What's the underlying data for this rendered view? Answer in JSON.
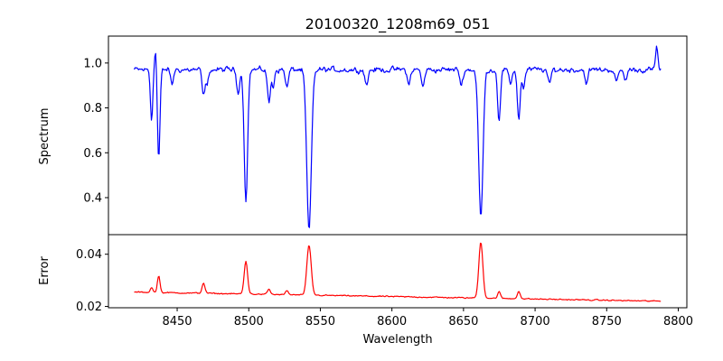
{
  "chart_data": [
    {
      "type": "line",
      "title": "20100320_1208m69_051",
      "xlabel": "",
      "ylabel": "Spectrum",
      "xlim": [
        8402,
        8806
      ],
      "ylim": [
        0.235,
        1.12
      ],
      "yticks": [
        0.4,
        0.6,
        0.8,
        1.0
      ],
      "ytick_labels": [
        "0.4",
        "0.6",
        "0.8",
        "1.0"
      ],
      "grid": false,
      "series": [
        {
          "color": "#0000ff",
          "continuum": 0.97,
          "noise_amplitude": 0.035,
          "x_start": 8420,
          "x_end": 8788,
          "x_step": 0.6,
          "points_sampled": [
            [
              8420,
              0.89
            ],
            [
              8424,
              0.97
            ],
            [
              8428,
              0.93
            ],
            [
              8430,
              0.76
            ],
            [
              8433,
              0.98
            ],
            [
              8435,
              1.08
            ],
            [
              8437,
              0.58
            ],
            [
              8441,
              0.95
            ],
            [
              8450,
              0.97
            ],
            [
              8458,
              0.92
            ],
            [
              8465,
              0.96
            ],
            [
              8470,
              0.85
            ],
            [
              8478,
              0.97
            ],
            [
              8488,
              0.95
            ],
            [
              8493,
              0.86
            ],
            [
              8498,
              0.41
            ],
            [
              8502,
              0.95
            ],
            [
              8510,
              1.0
            ],
            [
              8515,
              0.83
            ],
            [
              8520,
              0.96
            ],
            [
              8530,
              0.99
            ],
            [
              8536,
              0.85
            ],
            [
              8540,
              0.55
            ],
            [
              8542,
              0.27
            ],
            [
              8545,
              0.78
            ],
            [
              8550,
              0.97
            ],
            [
              8560,
              1.0
            ],
            [
              8570,
              0.93
            ],
            [
              8580,
              1.0
            ],
            [
              8590,
              0.98
            ],
            [
              8600,
              0.97
            ],
            [
              8610,
              1.0
            ],
            [
              8620,
              0.96
            ],
            [
              8630,
              0.98
            ],
            [
              8640,
              0.96
            ],
            [
              8650,
              0.93
            ],
            [
              8658,
              0.85
            ],
            [
              8662,
              0.31
            ],
            [
              8665,
              0.82
            ],
            [
              8670,
              0.97
            ],
            [
              8675,
              0.75
            ],
            [
              8680,
              0.95
            ],
            [
              8689,
              0.76
            ],
            [
              8695,
              0.96
            ],
            [
              8705,
              0.97
            ],
            [
              8715,
              0.99
            ],
            [
              8725,
              0.96
            ],
            [
              8735,
              0.98
            ],
            [
              8745,
              0.97
            ],
            [
              8755,
              0.98
            ],
            [
              8765,
              0.97
            ],
            [
              8775,
              0.96
            ],
            [
              8785,
              1.07
            ],
            [
              8788,
              1.01
            ]
          ],
          "lines": [
            {
              "center": 8432.1,
              "depth": 0.22,
              "width": 0.8
            },
            {
              "center": 8435.0,
              "depth": -0.1,
              "width": 0.7
            },
            {
              "center": 8437.1,
              "depth": 0.4,
              "width": 0.9
            },
            {
              "center": 8446.4,
              "depth": 0.07,
              "width": 0.9
            },
            {
              "center": 8468.4,
              "depth": 0.12,
              "width": 1.0
            },
            {
              "center": 8471.0,
              "depth": 0.07,
              "width": 0.8
            },
            {
              "center": 8492.5,
              "depth": 0.1,
              "width": 1.0
            },
            {
              "center": 8498.0,
              "depth": 0.58,
              "width": 1.2
            },
            {
              "center": 8514.1,
              "depth": 0.15,
              "width": 1.0
            },
            {
              "center": 8517.0,
              "depth": 0.08,
              "width": 0.8
            },
            {
              "center": 8526.7,
              "depth": 0.08,
              "width": 1.0
            },
            {
              "center": 8542.1,
              "depth": 0.72,
              "width": 1.6
            },
            {
              "center": 8582.3,
              "depth": 0.07,
              "width": 1.0
            },
            {
              "center": 8611.8,
              "depth": 0.07,
              "width": 1.0
            },
            {
              "center": 8621.6,
              "depth": 0.08,
              "width": 1.0
            },
            {
              "center": 8648.5,
              "depth": 0.07,
              "width": 1.0
            },
            {
              "center": 8662.1,
              "depth": 0.66,
              "width": 1.5
            },
            {
              "center": 8674.8,
              "depth": 0.22,
              "width": 1.0
            },
            {
              "center": 8682.7,
              "depth": 0.07,
              "width": 1.0
            },
            {
              "center": 8688.6,
              "depth": 0.22,
              "width": 1.0
            },
            {
              "center": 8692.0,
              "depth": 0.08,
              "width": 0.9
            },
            {
              "center": 8710.0,
              "depth": 0.07,
              "width": 1.0
            },
            {
              "center": 8736.0,
              "depth": 0.06,
              "width": 1.0
            },
            {
              "center": 8757.0,
              "depth": 0.06,
              "width": 1.0
            },
            {
              "center": 8763.0,
              "depth": 0.05,
              "width": 1.0
            },
            {
              "center": 8785.0,
              "depth": -0.1,
              "width": 0.8
            }
          ]
        }
      ]
    },
    {
      "type": "line",
      "title": "",
      "xlabel": "Wavelength",
      "ylabel": "Error",
      "xlim": [
        8402,
        8806
      ],
      "ylim": [
        0.0195,
        0.0475
      ],
      "xticks": [
        8450,
        8500,
        8550,
        8600,
        8650,
        8700,
        8750,
        8800
      ],
      "xtick_labels": [
        "8450",
        "8500",
        "8550",
        "8600",
        "8650",
        "8700",
        "8750",
        "8800"
      ],
      "yticks": [
        0.02,
        0.04
      ],
      "ytick_labels": [
        "0.02",
        "0.04"
      ],
      "grid": false,
      "series": [
        {
          "color": "#ff0000",
          "baseline_start": 0.0255,
          "baseline_end": 0.022,
          "noise_amplitude": 0.0006,
          "x_start": 8420,
          "x_end": 8788,
          "x_step": 0.6,
          "points_sampled": [
            [
              8420,
              0.0255
            ],
            [
              8430,
              0.0255
            ],
            [
              8437,
              0.033
            ],
            [
              8445,
              0.026
            ],
            [
              8460,
              0.026
            ],
            [
              8468,
              0.0305
            ],
            [
              8480,
              0.026
            ],
            [
              8490,
              0.0265
            ],
            [
              8498,
              0.039
            ],
            [
              8505,
              0.026
            ],
            [
              8514,
              0.0285
            ],
            [
              8530,
              0.0265
            ],
            [
              8542,
              0.0455
            ],
            [
              8550,
              0.027
            ],
            [
              8570,
              0.0255
            ],
            [
              8600,
              0.0245
            ],
            [
              8630,
              0.0245
            ],
            [
              8655,
              0.025
            ],
            [
              8662,
              0.0465
            ],
            [
              8668,
              0.0255
            ],
            [
              8675,
              0.0275
            ],
            [
              8689,
              0.0285
            ],
            [
              8700,
              0.024
            ],
            [
              8730,
              0.0235
            ],
            [
              8760,
              0.023
            ],
            [
              8788,
              0.022
            ]
          ],
          "peaks": [
            {
              "center": 8432.1,
              "height": 0.002,
              "width": 0.8
            },
            {
              "center": 8437.1,
              "height": 0.0065,
              "width": 0.9
            },
            {
              "center": 8468.4,
              "height": 0.004,
              "width": 1.0
            },
            {
              "center": 8498.0,
              "height": 0.0125,
              "width": 1.2
            },
            {
              "center": 8514.1,
              "height": 0.002,
              "width": 1.0
            },
            {
              "center": 8526.7,
              "height": 0.0015,
              "width": 1.0
            },
            {
              "center": 8542.1,
              "height": 0.019,
              "width": 1.5
            },
            {
              "center": 8662.1,
              "height": 0.0215,
              "width": 1.4
            },
            {
              "center": 8674.8,
              "height": 0.0025,
              "width": 1.0
            },
            {
              "center": 8688.6,
              "height": 0.003,
              "width": 1.0
            }
          ]
        }
      ]
    }
  ]
}
